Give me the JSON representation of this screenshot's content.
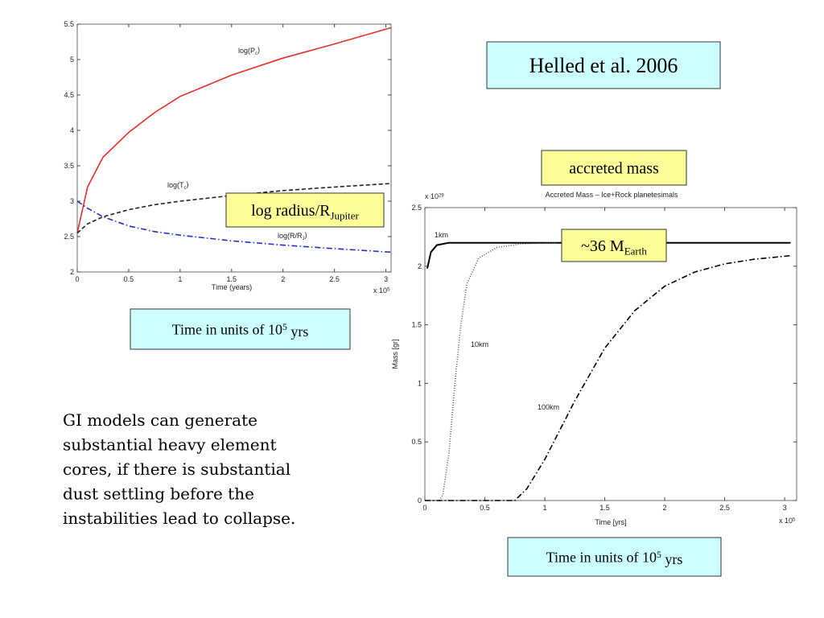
{
  "chart_data": [
    {
      "type": "line",
      "xlabel": "Time (years)",
      "x_multiplier": {
        "pre": "x 10",
        "sup": "5"
      },
      "xlim": [
        0,
        3.05
      ],
      "ylim": [
        2,
        5.5
      ],
      "xticks": [
        0,
        0.5,
        1,
        1.5,
        2,
        2.5,
        3
      ],
      "yticks": [
        2,
        2.5,
        3,
        3.5,
        4,
        4.5,
        5,
        5.5
      ],
      "x": [
        0,
        0.1,
        0.25,
        0.5,
        0.75,
        1,
        1.5,
        2,
        2.5,
        3.05
      ],
      "series": [
        {
          "name": {
            "pre": "log(P",
            "sub": "c",
            "post": ")"
          },
          "color": "#e0302a",
          "dash": "solid",
          "values": [
            2.55,
            3.2,
            3.62,
            3.97,
            4.25,
            4.48,
            4.78,
            5.02,
            5.22,
            5.45
          ]
        },
        {
          "name": {
            "pre": "log(T",
            "sub": "c",
            "post": ")"
          },
          "color": "#222222",
          "dash": "dashed",
          "values": [
            2.55,
            2.68,
            2.78,
            2.88,
            2.95,
            3.0,
            3.08,
            3.15,
            3.2,
            3.25
          ]
        },
        {
          "name": {
            "pre": "log(R/R",
            "sub": "J",
            "post": ")"
          },
          "color": "#2030d0",
          "dash": "dashdot",
          "values": [
            3.0,
            2.9,
            2.78,
            2.65,
            2.57,
            2.52,
            2.44,
            2.38,
            2.33,
            2.28
          ]
        }
      ]
    },
    {
      "type": "line",
      "title": "Accreted Mass – Ice+Rock planetesimals",
      "xlabel": "Time [yrs]",
      "ylabel": "Mass [gr]",
      "x_multiplier": {
        "pre": "x 10",
        "sup": "5"
      },
      "y_multiplier": {
        "pre": "x 10",
        "sup": "29"
      },
      "xlim": [
        0,
        3.1
      ],
      "ylim": [
        0,
        2.5
      ],
      "xticks": [
        0,
        0.5,
        1,
        1.5,
        2,
        2.5,
        3
      ],
      "yticks": [
        0,
        0.5,
        1,
        1.5,
        2,
        2.5
      ],
      "series": [
        {
          "name": "1km",
          "color": "#000000",
          "dash": "solid",
          "x": [
            0.02,
            0.05,
            0.1,
            0.2,
            0.5,
            1,
            2,
            3.05
          ],
          "values": [
            1.98,
            2.12,
            2.18,
            2.2,
            2.2,
            2.2,
            2.2,
            2.2
          ]
        },
        {
          "name": "10km",
          "color": "#555555",
          "dash": "dotted",
          "x": [
            0,
            0.12,
            0.15,
            0.2,
            0.25,
            0.3,
            0.35,
            0.45,
            0.6,
            0.8,
            1.1
          ],
          "values": [
            0,
            0,
            0.05,
            0.4,
            1.0,
            1.5,
            1.85,
            2.07,
            2.16,
            2.19,
            2.2
          ]
        },
        {
          "name": "100km",
          "color": "#000000",
          "dash": "dashdot",
          "x": [
            0,
            0.75,
            0.85,
            1,
            1.25,
            1.5,
            1.75,
            2,
            2.25,
            2.5,
            2.75,
            3.05
          ],
          "values": [
            0,
            0,
            0.1,
            0.35,
            0.85,
            1.3,
            1.62,
            1.83,
            1.95,
            2.02,
            2.06,
            2.09
          ]
        }
      ]
    }
  ],
  "callouts": {
    "citation": "Helled et al. 2006",
    "radius_label": {
      "pre": "log radius/R",
      "sub": "Jupiter"
    },
    "mass_label": "accreted mass",
    "mass_value": {
      "pre": "~36 M",
      "sub": "Earth"
    },
    "time_units": [
      {
        "pre": "Time in units of 10",
        "sup": "5",
        "post": " yrs"
      },
      {
        "pre": "Time in units of 10",
        "sup": "5",
        "post": " yrs"
      }
    ]
  },
  "text": [
    "GI models can generate",
    "substantial heavy element",
    "cores, if there is substantial",
    "dust settling before the",
    "instabilities lead to collapse."
  ]
}
